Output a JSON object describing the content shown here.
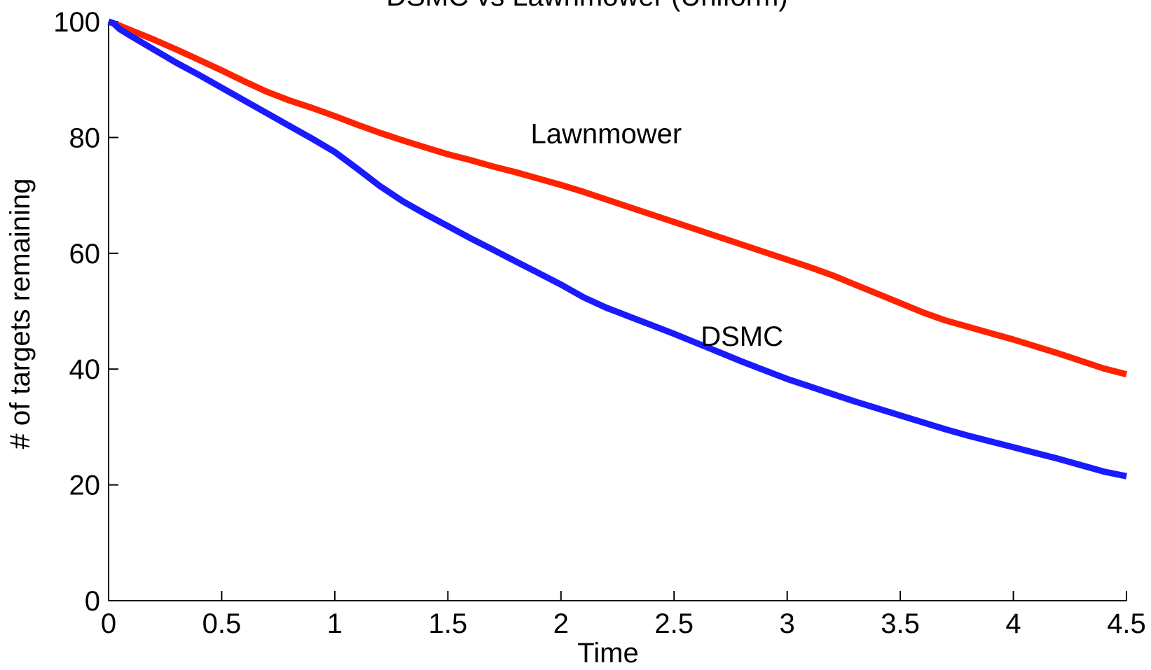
{
  "chart_data": {
    "type": "line",
    "title": "DSMC vs Lawnmower (Uniform)",
    "xlabel": "Time",
    "ylabel": "# of targets remaining",
    "xlim": [
      0,
      4.5
    ],
    "ylim": [
      0,
      100
    ],
    "xticks": [
      "0",
      "0.5",
      "1",
      "1.5",
      "2",
      "2.5",
      "3",
      "3.5",
      "4",
      "4.5"
    ],
    "yticks": [
      "0",
      "20",
      "40",
      "60",
      "80",
      "100"
    ],
    "grid": false,
    "legend": "none",
    "series": [
      {
        "name": "Lawnmower",
        "color": "#ff2200",
        "x": [
          0,
          0.05,
          0.1,
          0.2,
          0.3,
          0.4,
          0.5,
          0.6,
          0.7,
          0.8,
          0.9,
          1.0,
          1.1,
          1.2,
          1.3,
          1.4,
          1.5,
          1.6,
          1.7,
          1.8,
          1.9,
          2.0,
          2.1,
          2.2,
          2.3,
          2.4,
          2.5,
          2.6,
          2.7,
          2.8,
          2.9,
          3.0,
          3.1,
          3.2,
          3.3,
          3.4,
          3.5,
          3.6,
          3.7,
          3.8,
          3.9,
          4.0,
          4.1,
          4.2,
          4.3,
          4.4,
          4.5
        ],
        "y": [
          100,
          99.3,
          98.5,
          96.9,
          95.2,
          93.4,
          91.6,
          89.7,
          87.9,
          86.4,
          85.1,
          83.7,
          82.2,
          80.8,
          79.5,
          78.3,
          77.1,
          76.1,
          75.0,
          74.0,
          72.9,
          71.8,
          70.6,
          69.3,
          68.0,
          66.7,
          65.4,
          64.1,
          62.8,
          61.5,
          60.2,
          58.9,
          57.6,
          56.2,
          54.6,
          53.0,
          51.4,
          49.8,
          48.4,
          47.3,
          46.2,
          45.1,
          43.9,
          42.7,
          41.4,
          40.1,
          39.1
        ]
      },
      {
        "name": "DSMC",
        "color": "#1a1aff",
        "x": [
          0,
          0.02,
          0.05,
          0.1,
          0.2,
          0.3,
          0.4,
          0.5,
          0.6,
          0.7,
          0.8,
          0.9,
          1.0,
          1.1,
          1.2,
          1.3,
          1.4,
          1.5,
          1.6,
          1.7,
          1.8,
          1.9,
          2.0,
          2.1,
          2.2,
          2.3,
          2.4,
          2.5,
          2.6,
          2.7,
          2.8,
          2.9,
          3.0,
          3.1,
          3.2,
          3.3,
          3.4,
          3.5,
          3.6,
          3.7,
          3.8,
          3.9,
          4.0,
          4.1,
          4.2,
          4.3,
          4.4,
          4.5
        ],
        "y": [
          100,
          99.8,
          98.7,
          97.5,
          95.2,
          92.9,
          90.8,
          88.6,
          86.4,
          84.2,
          82.0,
          79.8,
          77.5,
          74.6,
          71.6,
          69.0,
          66.8,
          64.7,
          62.6,
          60.6,
          58.6,
          56.6,
          54.6,
          52.4,
          50.6,
          49.1,
          47.6,
          46.1,
          44.5,
          42.9,
          41.3,
          39.8,
          38.3,
          37.0,
          35.7,
          34.4,
          33.2,
          32.0,
          30.8,
          29.6,
          28.5,
          27.5,
          26.5,
          25.5,
          24.5,
          23.4,
          22.3,
          21.5
        ]
      }
    ],
    "annotations": [
      {
        "text": "Lawnmower",
        "x": 2.2,
        "y": 79
      },
      {
        "text": "DSMC",
        "x": 2.8,
        "y": 44
      }
    ]
  }
}
